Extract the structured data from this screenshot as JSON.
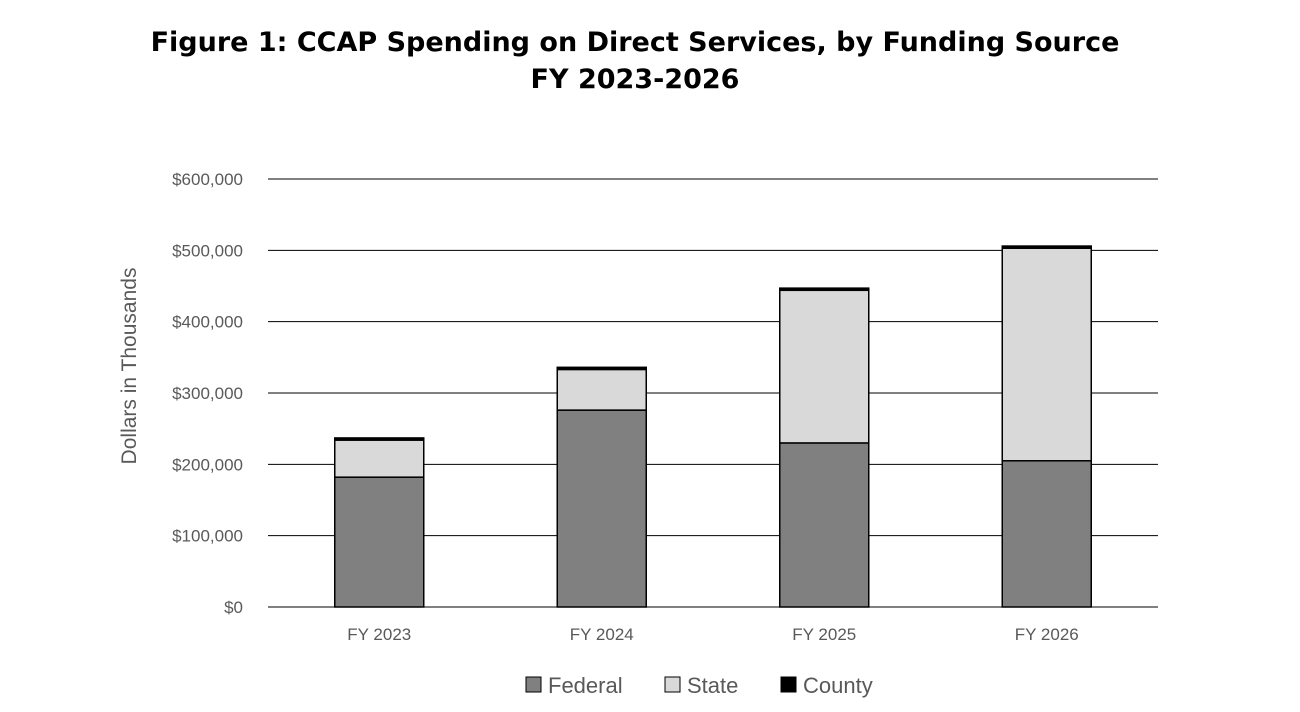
{
  "chart_data": {
    "type": "bar",
    "stacked": true,
    "title": "Figure 1: CCAP Spending on Direct Services, by Funding Source",
    "subtitle": "FY 2023-2026",
    "xlabel": "",
    "ylabel": "Dollars in Thousands",
    "ylim": [
      0,
      600000
    ],
    "yticks": [
      0,
      100000,
      200000,
      300000,
      400000,
      500000,
      600000
    ],
    "ytick_labels": [
      "$0",
      "$100,000",
      "$200,000",
      "$300,000",
      "$400,000",
      "$500,000",
      "$600,000"
    ],
    "categories": [
      "FY 2023",
      "FY 2024",
      "FY 2025",
      "FY 2026"
    ],
    "series": [
      {
        "name": "Federal",
        "color": "#808080",
        "values": [
          182000,
          276000,
          230000,
          205000
        ]
      },
      {
        "name": "State",
        "color": "#d9d9d9",
        "values": [
          52000,
          57000,
          214000,
          298000
        ]
      },
      {
        "name": "County",
        "color": "#000000",
        "values": [
          3000,
          3000,
          3000,
          3000
        ]
      }
    ],
    "grid": true,
    "legend_position": "bottom"
  }
}
